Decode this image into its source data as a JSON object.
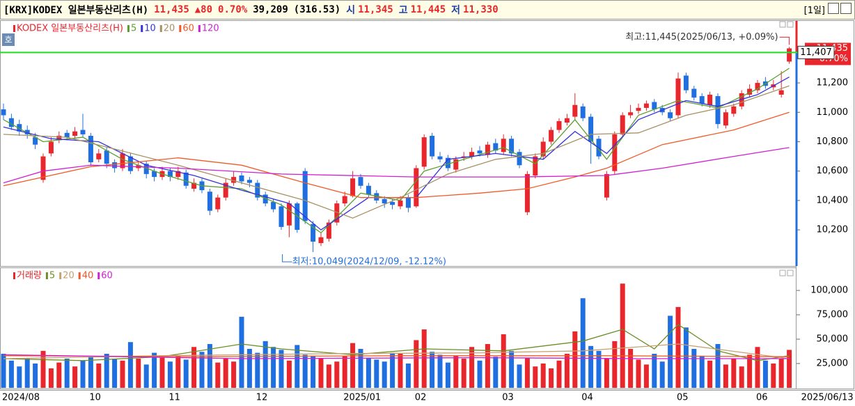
{
  "header": {
    "title": "[KRX]KODEX 일본부동산리츠(H)",
    "price": "11,435",
    "change": "▲80",
    "change_pct": "0.70%",
    "volume": "39,209",
    "amount": "(316.53)",
    "open_label": "시",
    "open": "11,345",
    "high_label": "고",
    "high": "11,445",
    "low_label": "저",
    "low": "11,330",
    "period": "[1일]",
    "quote_button": "호"
  },
  "chart_data": [
    {
      "type": "candlestick",
      "legend_title": "KODEX 일본부동산리츠(H)",
      "up_color": "#e8262b",
      "down_color": "#1f6fe0",
      "categories": [
        "2024/08",
        null,
        null,
        null,
        null,
        null,
        null,
        null,
        null,
        null,
        null,
        "10",
        null,
        null,
        null,
        null,
        null,
        null,
        null,
        null,
        null,
        "11",
        null,
        null,
        null,
        null,
        null,
        null,
        null,
        null,
        null,
        null,
        "12",
        null,
        null,
        null,
        null,
        null,
        null,
        null,
        null,
        null,
        null,
        "2025/01",
        null,
        null,
        null,
        null,
        null,
        null,
        null,
        null,
        "02",
        null,
        null,
        null,
        null,
        null,
        null,
        null,
        null,
        null,
        null,
        "03",
        null,
        null,
        null,
        null,
        null,
        null,
        null,
        null,
        null,
        "04",
        null,
        null,
        null,
        null,
        null,
        null,
        null,
        null,
        null,
        null,
        null,
        "05",
        null,
        null,
        null,
        null,
        null,
        null,
        null,
        null,
        null,
        "06",
        null,
        null,
        null,
        "2025/06/13"
      ],
      "open": [
        11020,
        10960,
        10920,
        10880,
        10830,
        10540,
        10720,
        10810,
        10860,
        10840,
        10880,
        10840,
        10680,
        10740,
        10660,
        10620,
        10700,
        10620,
        10650,
        10600,
        10560,
        10600,
        10560,
        10590,
        10480,
        10530,
        10460,
        10340,
        10420,
        10520,
        10570,
        10540,
        10520,
        10440,
        10390,
        10360,
        10230,
        10380,
        10600,
        10240,
        10110,
        10140,
        10250,
        10380,
        10430,
        10560,
        10500,
        10450,
        10410,
        10390,
        10360,
        10420,
        10360,
        10630,
        10840,
        10700,
        10690,
        10610,
        10690,
        10700,
        10740,
        10710,
        10790,
        10730,
        10820,
        10730,
        10320,
        10570,
        10700,
        10800,
        10880,
        10930,
        10970,
        11040,
        10970,
        10820,
        10420,
        10600,
        10850,
        10980,
        11010,
        11030,
        11070,
        11030,
        11000,
        10980,
        11250,
        11160,
        11110,
        11050,
        11110,
        10910,
        10990,
        11040,
        11120,
        11150,
        11210,
        11170,
        11120,
        11345
      ],
      "high": [
        11060,
        10990,
        10950,
        10910,
        10860,
        10720,
        10830,
        10870,
        10880,
        10900,
        10990,
        10860,
        10750,
        10760,
        10680,
        10750,
        10720,
        10670,
        10670,
        10620,
        10630,
        10620,
        10630,
        10610,
        10550,
        10550,
        10480,
        10440,
        10550,
        10600,
        10590,
        10560,
        10540,
        10460,
        10410,
        10380,
        10400,
        10390,
        10620,
        10260,
        10180,
        10270,
        10400,
        10460,
        10600,
        10580,
        10520,
        10470,
        10430,
        10410,
        10430,
        10440,
        10640,
        10850,
        10860,
        10730,
        10710,
        10700,
        10730,
        10760,
        10770,
        10800,
        10820,
        10850,
        10840,
        10750,
        10600,
        10720,
        10830,
        10900,
        10960,
        10990,
        11130,
        11060,
        10990,
        10840,
        10600,
        10870,
        11000,
        11050,
        11060,
        11080,
        11090,
        11050,
        11020,
        11270,
        11270,
        11180,
        11130,
        11140,
        11130,
        11020,
        11060,
        11150,
        11190,
        11220,
        11240,
        11220,
        11280,
        11445
      ],
      "low": [
        10950,
        10880,
        10840,
        10820,
        10750,
        10520,
        10700,
        10790,
        10810,
        10820,
        10830,
        10640,
        10660,
        10620,
        10590,
        10600,
        10580,
        10600,
        10550,
        10530,
        10540,
        10530,
        10540,
        10480,
        10460,
        10450,
        10300,
        10320,
        10400,
        10500,
        10510,
        10490,
        10400,
        10360,
        10320,
        10200,
        10150,
        10180,
        10240,
        10049,
        10090,
        10120,
        10230,
        10360,
        10420,
        10480,
        10420,
        10380,
        10350,
        10340,
        10340,
        10320,
        10350,
        10610,
        10680,
        10660,
        10600,
        10590,
        10670,
        10680,
        10700,
        10690,
        10720,
        10710,
        10700,
        10620,
        10300,
        10550,
        10680,
        10780,
        10860,
        10910,
        10950,
        10940,
        10650,
        10680,
        10400,
        10580,
        10830,
        10960,
        10990,
        11010,
        11000,
        10980,
        10940,
        10960,
        11130,
        11080,
        11040,
        11030,
        10890,
        10890,
        10970,
        11020,
        11100,
        11130,
        11160,
        11150,
        11100,
        11330
      ],
      "close": [
        10980,
        10900,
        10870,
        10850,
        10780,
        10700,
        10800,
        10840,
        10830,
        10870,
        10850,
        10660,
        10720,
        10650,
        10620,
        10720,
        10600,
        10640,
        10580,
        10560,
        10600,
        10560,
        10600,
        10500,
        10520,
        10470,
        10330,
        10420,
        10520,
        10560,
        10530,
        10520,
        10420,
        10380,
        10340,
        10220,
        10380,
        10200,
        10260,
        10120,
        10150,
        10250,
        10380,
        10430,
        10550,
        10500,
        10440,
        10400,
        10380,
        10370,
        10400,
        10350,
        10620,
        10830,
        10700,
        10680,
        10620,
        10680,
        10700,
        10730,
        10720,
        10780,
        10740,
        10820,
        10720,
        10640,
        10580,
        10700,
        10800,
        10880,
        10940,
        10960,
        11050,
        10960,
        10800,
        10700,
        10580,
        10850,
        10980,
        11000,
        11030,
        11060,
        11020,
        11000,
        10960,
        11230,
        11150,
        11100,
        11060,
        11120,
        10920,
        11000,
        11040,
        11130,
        11160,
        11200,
        11180,
        11190,
        11150,
        11435
      ],
      "ylim": [
        9954,
        11622
      ],
      "yticks": [
        {
          "value": 10200,
          "label": "10,200"
        },
        {
          "value": 10400,
          "label": "10,400"
        },
        {
          "value": 10600,
          "label": "10,600"
        },
        {
          "value": 10800,
          "label": "10,800"
        },
        {
          "value": 11000,
          "label": "11,000"
        },
        {
          "value": 11200,
          "label": "11,200"
        }
      ],
      "grid": false,
      "ma": [
        {
          "name": "5",
          "color": "#5aa02c",
          "x": [
            0,
            5,
            10,
            15,
            20,
            25,
            30,
            35,
            40,
            45,
            50,
            53,
            58,
            63,
            67,
            72,
            76,
            80,
            85,
            90,
            95,
            99
          ],
          "values": [
            10950,
            10800,
            10830,
            10680,
            10580,
            10500,
            10480,
            10370,
            10180,
            10450,
            10400,
            10600,
            10680,
            10760,
            10650,
            10950,
            10680,
            10980,
            11080,
            11030,
            11160,
            11300
          ]
        },
        {
          "name": "10",
          "color": "#3333dd",
          "x": [
            0,
            6,
            12,
            18,
            24,
            30,
            36,
            40,
            46,
            52,
            56,
            62,
            68,
            72,
            76,
            80,
            86,
            90,
            95,
            99
          ],
          "values": [
            10900,
            10820,
            10800,
            10640,
            10570,
            10470,
            10380,
            10200,
            10420,
            10420,
            10680,
            10720,
            10680,
            10870,
            10720,
            10950,
            11080,
            11040,
            11120,
            11240
          ]
        },
        {
          "name": "20",
          "color": "#a89060",
          "x": [
            0,
            8,
            14,
            22,
            30,
            38,
            44,
            50,
            56,
            62,
            68,
            74,
            80,
            86,
            92,
            99
          ],
          "values": [
            10850,
            10830,
            10750,
            10640,
            10520,
            10400,
            10280,
            10420,
            10580,
            10680,
            10720,
            10850,
            10860,
            10980,
            11050,
            11180
          ]
        },
        {
          "name": "60",
          "color": "#f05a28",
          "x": [
            0,
            11,
            22,
            30,
            38,
            45,
            52,
            60,
            66,
            72,
            76,
            83,
            92,
            99
          ],
          "values": [
            10500,
            10630,
            10690,
            10640,
            10520,
            10420,
            10420,
            10450,
            10480,
            10560,
            10620,
            10780,
            10880,
            11000
          ]
        },
        {
          "name": "120",
          "color": "#d020d0",
          "x": [
            0,
            5,
            11,
            22,
            35,
            52,
            65,
            76,
            83,
            92,
            99
          ],
          "values": [
            10520,
            10600,
            10640,
            10620,
            10580,
            10560,
            10560,
            10570,
            10620,
            10700,
            10760
          ]
        }
      ],
      "annotations": {
        "high": "최고:11,445(2025/06/13, +0.09%)",
        "low": "최저:10,049(2024/12/09, -12.12%)"
      },
      "current": {
        "value": 11407,
        "label": "11,407"
      },
      "last": {
        "value": 11435,
        "label": "11,435",
        "change": "0.70%"
      }
    },
    {
      "type": "bar",
      "legend_title": "거래량",
      "values": [
        35000,
        28000,
        22000,
        30000,
        25000,
        38000,
        20000,
        26000,
        30000,
        22000,
        28000,
        32000,
        25000,
        35000,
        30000,
        28000,
        47000,
        30000,
        24000,
        36000,
        31000,
        27000,
        33000,
        29000,
        42000,
        37000,
        45000,
        26000,
        30000,
        27000,
        73000,
        40000,
        36000,
        48000,
        42000,
        39000,
        28000,
        44000,
        34000,
        33000,
        30000,
        24000,
        27000,
        33000,
        46000,
        40000,
        31000,
        29000,
        27000,
        36000,
        35000,
        25000,
        49000,
        60000,
        37000,
        34000,
        26000,
        33000,
        30000,
        42000,
        28000,
        45000,
        32000,
        55000,
        38000,
        24000,
        31000,
        22000,
        25000,
        20000,
        28000,
        35000,
        58000,
        92000,
        43000,
        38000,
        30000,
        48000,
        107000,
        40000,
        29000,
        24000,
        35000,
        27000,
        74000,
        83000,
        62000,
        40000,
        33000,
        28000,
        45000,
        24000,
        30000,
        22000,
        34000,
        42000,
        28000,
        25000,
        30000,
        39000
      ],
      "ylim": [
        0,
        122900
      ],
      "yticks": [
        {
          "value": 25000,
          "label": "25,000"
        },
        {
          "value": 50000,
          "label": "50,000"
        },
        {
          "value": 75000,
          "label": "75,000"
        },
        {
          "value": 100000,
          "label": "100,000"
        }
      ],
      "ma": [
        {
          "name": "5",
          "color": "#6b8e23",
          "x": [
            0,
            10,
            20,
            30,
            35,
            44,
            53,
            63,
            73,
            78,
            82,
            85,
            90,
            95,
            99
          ],
          "values": [
            30000,
            28000,
            32000,
            45000,
            40000,
            34000,
            40000,
            38000,
            48000,
            60000,
            40000,
            65000,
            38000,
            28000,
            33000
          ]
        },
        {
          "name": "20",
          "color": "#c8a070",
          "x": [
            0,
            20,
            40,
            60,
            73,
            85,
            99
          ],
          "values": [
            30000,
            33000,
            35000,
            36000,
            38000,
            45000,
            30000
          ]
        },
        {
          "name": "40",
          "color": "#f05a28",
          "x": [
            0,
            25,
            50,
            75,
            99
          ],
          "values": [
            33000,
            32000,
            33000,
            33000,
            32000
          ]
        },
        {
          "name": "60",
          "color": "#d020d0",
          "x": [
            0,
            30,
            60,
            80,
            99
          ],
          "values": [
            34000,
            30000,
            31000,
            30000,
            30000
          ]
        }
      ]
    }
  ]
}
